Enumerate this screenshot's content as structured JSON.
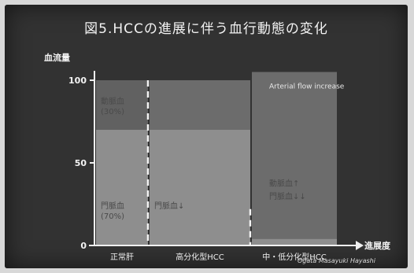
{
  "title": "図5.HCCの進展に伴う血行動態の変化",
  "credit": "Ogata Masayuki Hayashi",
  "chart_data": {
    "type": "bar",
    "stacked": true,
    "ylabel": "血流量",
    "xlabel": "進展度",
    "ylim": [
      0,
      100
    ],
    "yticks": [
      0,
      50,
      100
    ],
    "categories": [
      "正常肝",
      "高分化型HCC",
      "中・低分化型HCC"
    ],
    "series": [
      {
        "name": "門脈血",
        "color": "#8e8e8e",
        "values": [
          70,
          70,
          4
        ],
        "labels": [
          "門脈血\n(70%)",
          "門脈血↓",
          "門脈血↓↓"
        ]
      },
      {
        "name": "動脈血",
        "color": "#6c6c6c",
        "values": [
          30,
          30,
          101
        ],
        "labels": [
          "動脈血\n(30%)",
          "",
          "動脈血↑"
        ]
      }
    ],
    "annotation": "Arterial flow increase",
    "grid": false,
    "legend": "none"
  },
  "colors": {
    "background": "#323232",
    "axis": "#f0f0f0",
    "portal": "#8e8e8e",
    "arterial": "#6c6c6c",
    "text": "#f4f4f4"
  }
}
